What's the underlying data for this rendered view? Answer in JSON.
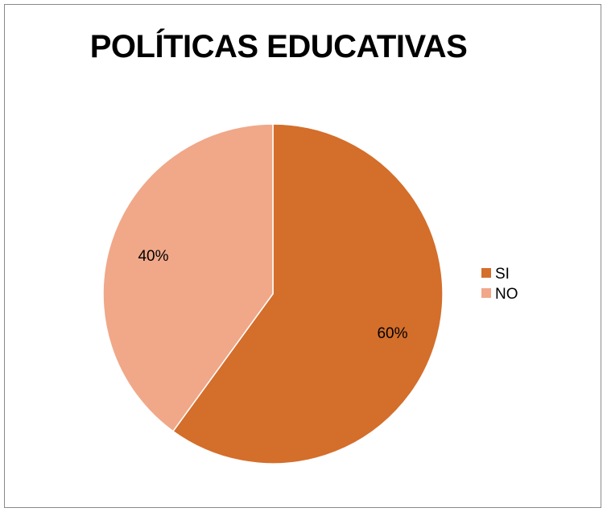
{
  "chart_data": {
    "type": "pie",
    "title": "POLÍTICAS EDUCATIVAS",
    "categories": [
      "SI",
      "NO"
    ],
    "values": [
      60,
      40
    ],
    "data_labels": [
      "60%",
      "40%"
    ],
    "colors": [
      "#D46E2B",
      "#F0A889"
    ],
    "legend_position": "right"
  }
}
